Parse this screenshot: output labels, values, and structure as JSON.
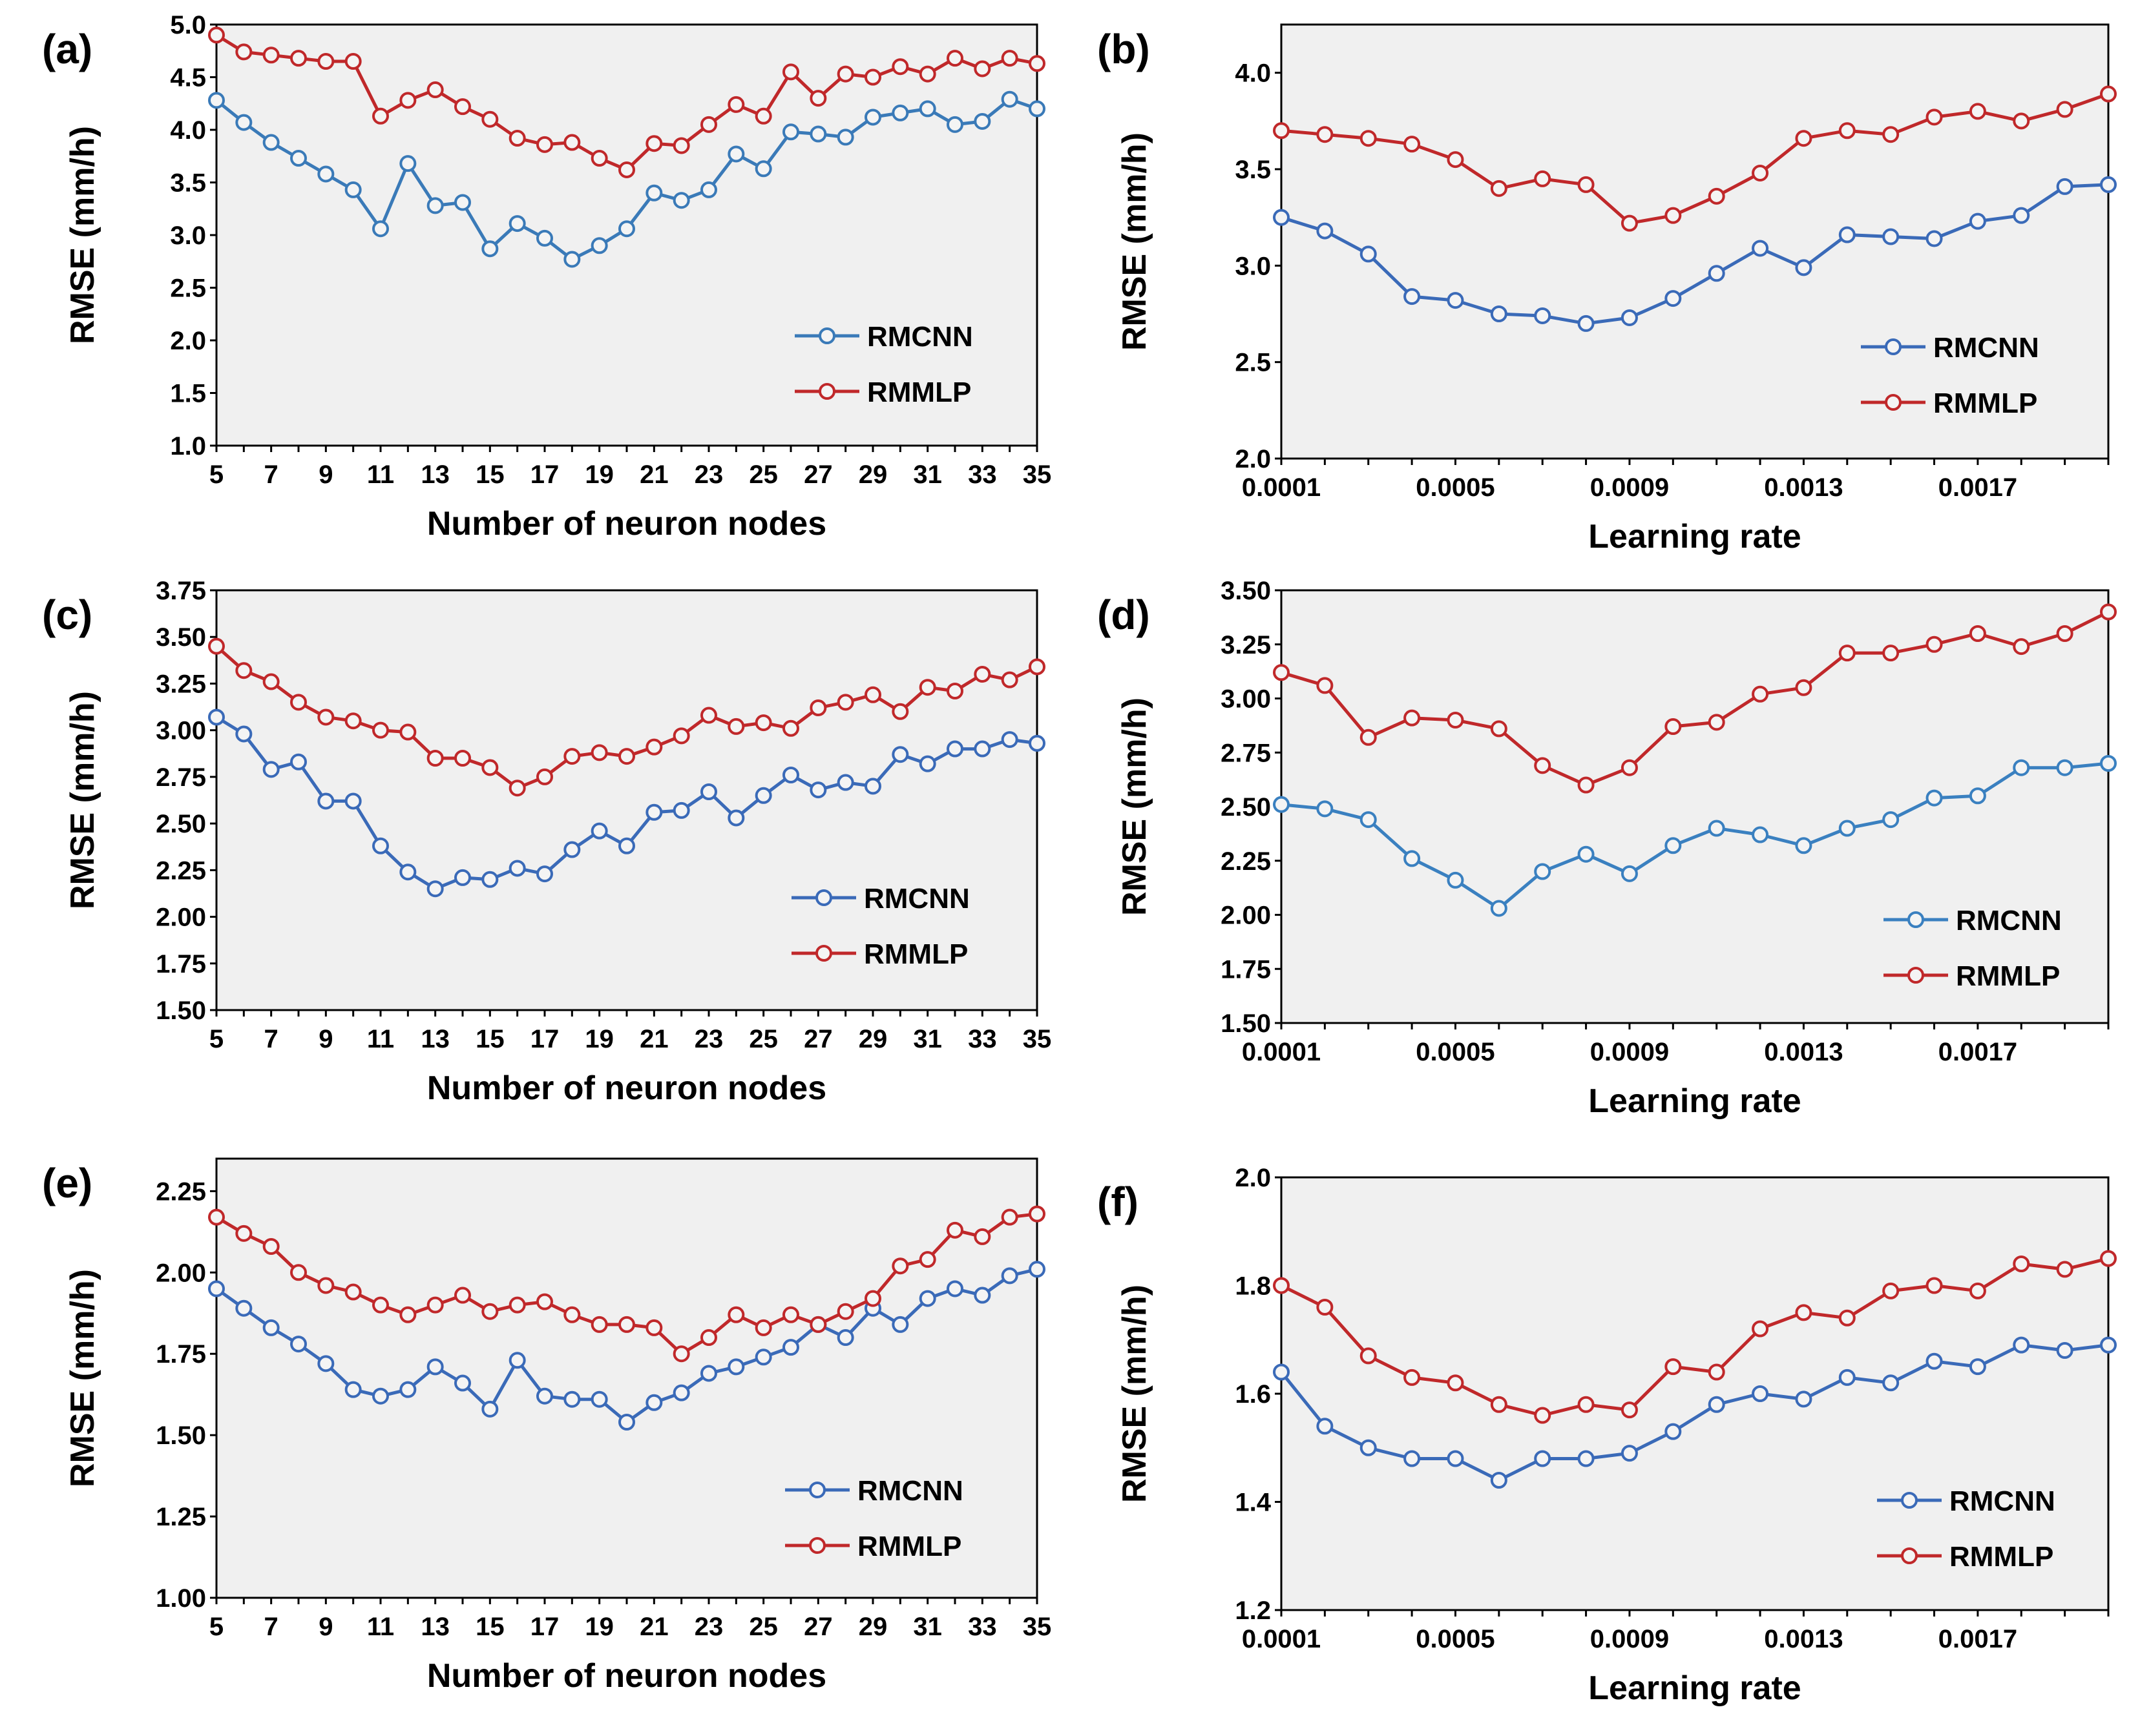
{
  "chart_data": [
    {
      "panel": "(a)",
      "type": "line",
      "xlabel": "Number of neuron nodes",
      "ylabel": "RMSE (mm/h)",
      "ylim": [
        1.0,
        5.0
      ],
      "xlim": [
        5,
        35
      ],
      "yticks": [
        "1.0",
        "1.5",
        "2.0",
        "2.5",
        "3.0",
        "3.5",
        "4.0",
        "4.5",
        "5.0"
      ],
      "xticks": [
        "5",
        "7",
        "9",
        "11",
        "13",
        "15",
        "17",
        "19",
        "21",
        "23",
        "25",
        "27",
        "29",
        "31",
        "33",
        "35"
      ],
      "x": [
        5,
        6,
        7,
        8,
        9,
        10,
        11,
        12,
        13,
        14,
        15,
        16,
        17,
        18,
        19,
        20,
        21,
        22,
        23,
        24,
        25,
        26,
        27,
        28,
        29,
        30,
        31,
        32,
        33,
        34,
        35
      ],
      "series": [
        {
          "name": "RMCNN",
          "color": "#3a7ab8",
          "values": [
            4.28,
            4.07,
            3.88,
            3.73,
            3.58,
            3.43,
            3.06,
            3.68,
            3.28,
            3.31,
            2.87,
            3.11,
            2.97,
            2.77,
            2.9,
            3.06,
            3.4,
            3.33,
            3.43,
            3.77,
            3.63,
            3.98,
            3.96,
            3.93,
            4.12,
            4.16,
            4.2,
            4.05,
            4.08,
            4.29,
            4.2
          ]
        },
        {
          "name": "RMMLP",
          "color": "#c0282a",
          "values": [
            4.9,
            4.74,
            4.71,
            4.68,
            4.65,
            4.65,
            4.13,
            4.28,
            4.38,
            4.22,
            4.1,
            3.92,
            3.86,
            3.88,
            3.73,
            3.62,
            3.87,
            3.85,
            4.05,
            4.24,
            4.13,
            4.55,
            4.3,
            4.53,
            4.5,
            4.6,
            4.53,
            4.68,
            4.58,
            4.68,
            4.63
          ]
        }
      ]
    },
    {
      "panel": "(b)",
      "type": "line",
      "xlabel": "Learning rate",
      "ylabel": "RMSE (mm/h)",
      "ylim": [
        2.0,
        4.25
      ],
      "xlim": [
        0.0001,
        0.002
      ],
      "yticks": [
        "2.0",
        "2.5",
        "3.0",
        "3.5",
        "4.0"
      ],
      "xticks": [
        "0.0001",
        "0.0005",
        "0.0009",
        "0.0013",
        "0.0017"
      ],
      "x": [
        0.0001,
        0.0002,
        0.0003,
        0.0004,
        0.0005,
        0.0006,
        0.0007,
        0.0008,
        0.0009,
        0.001,
        0.0011,
        0.0012,
        0.0013,
        0.0014,
        0.0015,
        0.0016,
        0.0017,
        0.0018,
        0.0019,
        0.002
      ],
      "series": [
        {
          "name": "RMCNN",
          "color": "#3a6ab8",
          "values": [
            3.25,
            3.18,
            3.06,
            2.84,
            2.82,
            2.75,
            2.74,
            2.7,
            2.73,
            2.83,
            2.96,
            3.09,
            2.99,
            3.16,
            3.15,
            3.14,
            3.23,
            3.26,
            3.41,
            3.42
          ]
        },
        {
          "name": "RMMLP",
          "color": "#c0282a",
          "values": [
            3.7,
            3.68,
            3.66,
            3.63,
            3.55,
            3.4,
            3.45,
            3.42,
            3.22,
            3.26,
            3.36,
            3.48,
            3.66,
            3.7,
            3.68,
            3.77,
            3.8,
            3.75,
            3.81,
            3.89
          ]
        }
      ]
    },
    {
      "panel": "(c)",
      "type": "line",
      "xlabel": "Number of neuron nodes",
      "ylabel": "RMSE (mm/h)",
      "ylim": [
        1.5,
        3.75
      ],
      "xlim": [
        5,
        35
      ],
      "yticks": [
        "1.50",
        "1.75",
        "2.00",
        "2.25",
        "2.50",
        "2.75",
        "3.00",
        "3.25",
        "3.50",
        "3.75"
      ],
      "xticks": [
        "5",
        "7",
        "9",
        "11",
        "13",
        "15",
        "17",
        "19",
        "21",
        "23",
        "25",
        "27",
        "29",
        "31",
        "33",
        "35"
      ],
      "x": [
        5,
        6,
        7,
        8,
        9,
        10,
        11,
        12,
        13,
        14,
        15,
        16,
        17,
        18,
        19,
        20,
        21,
        22,
        23,
        24,
        25,
        26,
        27,
        28,
        29,
        30,
        31,
        32,
        33,
        34,
        35
      ],
      "series": [
        {
          "name": "RMCNN",
          "color": "#3a6ab8",
          "values": [
            3.07,
            2.98,
            2.79,
            2.83,
            2.62,
            2.62,
            2.38,
            2.24,
            2.15,
            2.21,
            2.2,
            2.26,
            2.23,
            2.36,
            2.46,
            2.38,
            2.56,
            2.57,
            2.67,
            2.53,
            2.65,
            2.76,
            2.68,
            2.72,
            2.7,
            2.87,
            2.82,
            2.9,
            2.9,
            2.95,
            2.93
          ]
        },
        {
          "name": "RMMLP",
          "color": "#c0282a",
          "values": [
            3.45,
            3.32,
            3.26,
            3.15,
            3.07,
            3.05,
            3.0,
            2.99,
            2.85,
            2.85,
            2.8,
            2.69,
            2.75,
            2.86,
            2.88,
            2.86,
            2.91,
            2.97,
            3.08,
            3.02,
            3.04,
            3.01,
            3.12,
            3.15,
            3.19,
            3.1,
            3.23,
            3.21,
            3.3,
            3.27,
            3.34
          ]
        }
      ]
    },
    {
      "panel": "(d)",
      "type": "line",
      "xlabel": "Learning rate",
      "ylabel": "RMSE (mm/h)",
      "ylim": [
        1.5,
        3.5
      ],
      "xlim": [
        0.0001,
        0.002
      ],
      "yticks": [
        "1.50",
        "1.75",
        "2.00",
        "2.25",
        "2.50",
        "2.75",
        "3.00",
        "3.25",
        "3.50"
      ],
      "xticks": [
        "0.0001",
        "0.0005",
        "0.0009",
        "0.0013",
        "0.0017"
      ],
      "x": [
        0.0001,
        0.0002,
        0.0003,
        0.0004,
        0.0005,
        0.0006,
        0.0007,
        0.0008,
        0.0009,
        0.001,
        0.0011,
        0.0012,
        0.0013,
        0.0014,
        0.0015,
        0.0016,
        0.0017,
        0.0018,
        0.0019,
        0.002
      ],
      "series": [
        {
          "name": "RMCNN",
          "color": "#3a80c0",
          "values": [
            2.51,
            2.49,
            2.44,
            2.26,
            2.16,
            2.03,
            2.2,
            2.28,
            2.19,
            2.32,
            2.4,
            2.37,
            2.32,
            2.4,
            2.44,
            2.54,
            2.55,
            2.68,
            2.68,
            2.7
          ]
        },
        {
          "name": "RMMLP",
          "color": "#c0282a",
          "values": [
            3.12,
            3.06,
            2.82,
            2.91,
            2.9,
            2.86,
            2.69,
            2.6,
            2.68,
            2.87,
            2.89,
            3.02,
            3.05,
            3.21,
            3.21,
            3.25,
            3.3,
            3.24,
            3.3,
            3.4
          ]
        }
      ]
    },
    {
      "panel": "(e)",
      "type": "line",
      "xlabel": "Number of neuron nodes",
      "ylabel": "RMSE (mm/h)",
      "ylim": [
        1.0,
        2.35
      ],
      "xlim": [
        5,
        35
      ],
      "yticks": [
        "1.00",
        "1.25",
        "1.50",
        "1.75",
        "2.00",
        "2.25"
      ],
      "xticks": [
        "5",
        "7",
        "9",
        "11",
        "13",
        "15",
        "17",
        "19",
        "21",
        "23",
        "25",
        "27",
        "29",
        "31",
        "33",
        "35"
      ],
      "x": [
        5,
        6,
        7,
        8,
        9,
        10,
        11,
        12,
        13,
        14,
        15,
        16,
        17,
        18,
        19,
        20,
        21,
        22,
        23,
        24,
        25,
        26,
        27,
        28,
        29,
        30,
        31,
        32,
        33,
        34,
        35
      ],
      "series": [
        {
          "name": "RMCNN",
          "color": "#3a6ab8",
          "values": [
            1.95,
            1.89,
            1.83,
            1.78,
            1.72,
            1.64,
            1.62,
            1.64,
            1.71,
            1.66,
            1.58,
            1.73,
            1.62,
            1.61,
            1.61,
            1.54,
            1.6,
            1.63,
            1.69,
            1.71,
            1.74,
            1.77,
            1.84,
            1.8,
            1.89,
            1.84,
            1.92,
            1.95,
            1.93,
            1.99,
            2.01
          ]
        },
        {
          "name": "RMMLP",
          "color": "#c0282a",
          "values": [
            2.17,
            2.12,
            2.08,
            2.0,
            1.96,
            1.94,
            1.9,
            1.87,
            1.9,
            1.93,
            1.88,
            1.9,
            1.91,
            1.87,
            1.84,
            1.84,
            1.83,
            1.75,
            1.8,
            1.87,
            1.83,
            1.87,
            1.84,
            1.88,
            1.92,
            2.02,
            2.04,
            2.13,
            2.11,
            2.17,
            2.18
          ]
        }
      ]
    },
    {
      "panel": "(f)",
      "type": "line",
      "xlabel": "Learning rate",
      "ylabel": "RMSE (mm/h)",
      "ylim": [
        1.2,
        2.0
      ],
      "xlim": [
        0.0001,
        0.002
      ],
      "yticks": [
        "1.2",
        "1.4",
        "1.6",
        "1.8",
        "2.0"
      ],
      "xticks": [
        "0.0001",
        "0.0005",
        "0.0009",
        "0.0013",
        "0.0017"
      ],
      "x": [
        0.0001,
        0.0002,
        0.0003,
        0.0004,
        0.0005,
        0.0006,
        0.0007,
        0.0008,
        0.0009,
        0.001,
        0.0011,
        0.0012,
        0.0013,
        0.0014,
        0.0015,
        0.0016,
        0.0017,
        0.0018,
        0.0019,
        0.002
      ],
      "series": [
        {
          "name": "RMCNN",
          "color": "#3a6ab8",
          "values": [
            1.64,
            1.54,
            1.5,
            1.48,
            1.48,
            1.44,
            1.48,
            1.48,
            1.49,
            1.53,
            1.58,
            1.6,
            1.59,
            1.63,
            1.62,
            1.66,
            1.65,
            1.69,
            1.68,
            1.69
          ]
        },
        {
          "name": "RMMLP",
          "color": "#c0282a",
          "values": [
            1.8,
            1.76,
            1.67,
            1.63,
            1.62,
            1.58,
            1.56,
            1.58,
            1.57,
            1.65,
            1.64,
            1.72,
            1.75,
            1.74,
            1.79,
            1.8,
            1.79,
            1.84,
            1.83,
            1.85
          ]
        }
      ]
    }
  ]
}
